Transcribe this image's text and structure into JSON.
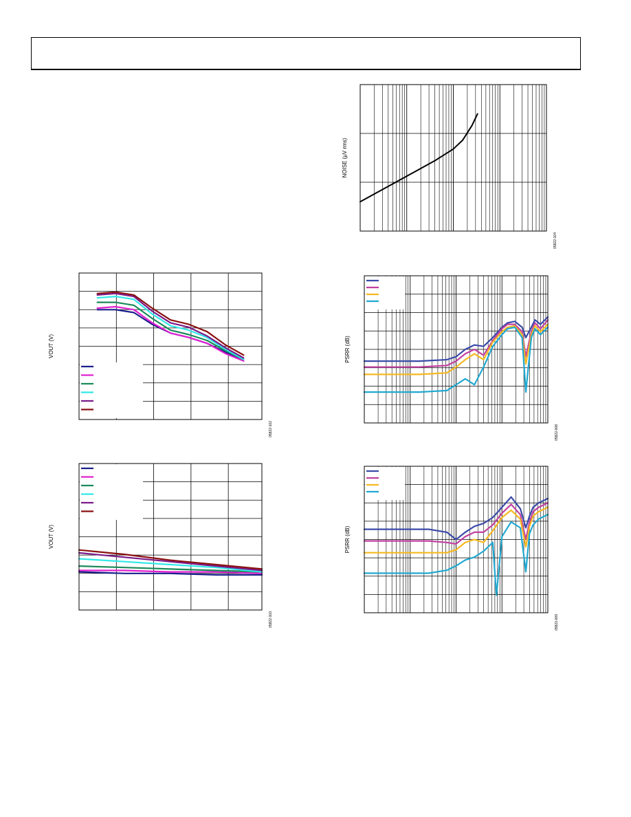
{
  "header": {
    "text": ""
  },
  "chart_data": [
    {
      "id": "noise",
      "type": "line",
      "ylabel": "NOISE (µV rms)",
      "xscale": "log",
      "figure_id": "05822-104",
      "series": [
        {
          "name": "",
          "color": "#000000",
          "x": [
            0.0,
            0.1,
            0.2,
            0.3,
            0.4,
            0.5,
            0.55,
            0.6,
            0.63
          ],
          "y": [
            0.8,
            0.73,
            0.66,
            0.59,
            0.52,
            0.44,
            0.38,
            0.28,
            0.2
          ]
        }
      ]
    },
    {
      "id": "vout-top",
      "type": "line",
      "ylabel": "VOUT (V)",
      "figure_id": "05822-102",
      "legend": {
        "placement": "bottom-left",
        "colors": [
          "#1a1f8c",
          "#e020d0",
          "#1a8a5a",
          "#30e8e8",
          "#7a1a8a",
          "#8a1010"
        ]
      },
      "series": [
        {
          "name": "",
          "color": "#1a1f8c",
          "x": [
            0.1,
            0.2,
            0.3,
            0.4,
            0.5,
            0.6,
            0.7,
            0.8,
            0.9
          ],
          "y": [
            0.25,
            0.25,
            0.27,
            0.35,
            0.41,
            0.44,
            0.48,
            0.54,
            0.6
          ]
        },
        {
          "name": "",
          "color": "#e020d0",
          "x": [
            0.1,
            0.2,
            0.3,
            0.4,
            0.5,
            0.6,
            0.7,
            0.8,
            0.9
          ],
          "y": [
            0.24,
            0.23,
            0.25,
            0.34,
            0.41,
            0.44,
            0.48,
            0.55,
            0.6
          ]
        },
        {
          "name": "",
          "color": "#1a8a5a",
          "x": [
            0.1,
            0.2,
            0.3,
            0.4,
            0.5,
            0.6,
            0.7,
            0.8,
            0.9
          ],
          "y": [
            0.2,
            0.2,
            0.22,
            0.31,
            0.39,
            0.42,
            0.46,
            0.53,
            0.59
          ]
        },
        {
          "name": "",
          "color": "#30e8e8",
          "x": [
            0.1,
            0.2,
            0.3,
            0.4,
            0.5,
            0.6,
            0.7,
            0.8,
            0.9
          ],
          "y": [
            0.17,
            0.16,
            0.18,
            0.28,
            0.36,
            0.39,
            0.44,
            0.52,
            0.59
          ]
        },
        {
          "name": "",
          "color": "#7a1a8a",
          "x": [
            0.1,
            0.2,
            0.3,
            0.4,
            0.5,
            0.6,
            0.7,
            0.8,
            0.9
          ],
          "y": [
            0.15,
            0.14,
            0.16,
            0.26,
            0.34,
            0.37,
            0.43,
            0.51,
            0.58
          ]
        },
        {
          "name": "",
          "color": "#8a1010",
          "x": [
            0.1,
            0.2,
            0.3,
            0.4,
            0.5,
            0.6,
            0.7,
            0.8,
            0.9
          ],
          "y": [
            0.14,
            0.13,
            0.15,
            0.24,
            0.32,
            0.35,
            0.4,
            0.49,
            0.56
          ]
        }
      ]
    },
    {
      "id": "vout-bottom",
      "type": "line",
      "ylabel": "VOUT (V)",
      "figure_id": "05822-103",
      "legend": {
        "placement": "top-left",
        "colors": [
          "#1a1f8c",
          "#e020d0",
          "#1a8a5a",
          "#30e8e8",
          "#7a1a8a",
          "#8a1010"
        ]
      },
      "series": [
        {
          "name": "",
          "color": "#1a1f8c",
          "x": [
            0,
            0.25,
            0.5,
            0.75,
            1
          ],
          "y": [
            0.74,
            0.75,
            0.75,
            0.76,
            0.76
          ]
        },
        {
          "name": "",
          "color": "#e020d0",
          "x": [
            0,
            0.25,
            0.5,
            0.75,
            1
          ],
          "y": [
            0.73,
            0.73,
            0.74,
            0.74,
            0.75
          ]
        },
        {
          "name": "",
          "color": "#1a8a5a",
          "x": [
            0,
            0.25,
            0.5,
            0.75,
            1
          ],
          "y": [
            0.7,
            0.71,
            0.72,
            0.73,
            0.74
          ]
        },
        {
          "name": "",
          "color": "#30e8e8",
          "x": [
            0,
            0.25,
            0.5,
            0.75,
            1
          ],
          "y": [
            0.65,
            0.67,
            0.69,
            0.71,
            0.74
          ]
        },
        {
          "name": "",
          "color": "#7a1a8a",
          "x": [
            0,
            0.25,
            0.5,
            0.75,
            1
          ],
          "y": [
            0.61,
            0.64,
            0.67,
            0.7,
            0.73
          ]
        },
        {
          "name": "",
          "color": "#8a1010",
          "x": [
            0,
            0.25,
            0.5,
            0.75,
            1
          ],
          "y": [
            0.59,
            0.62,
            0.66,
            0.69,
            0.72
          ]
        }
      ]
    },
    {
      "id": "psrr-top",
      "type": "line",
      "ylabel": "PSRR (dB)",
      "xscale": "log",
      "figure_id": "05822-008",
      "legend": {
        "placement": "top-left",
        "colors": [
          "#3a4aa8",
          "#c040a0",
          "#f5b820",
          "#20a8d0"
        ]
      },
      "series": [
        {
          "name": "",
          "color": "#3a4aa8",
          "x": [
            0,
            0.3,
            0.45,
            0.5,
            0.55,
            0.6,
            0.65,
            0.7,
            0.75,
            0.78,
            0.82,
            0.86,
            0.88,
            0.91,
            0.93,
            0.96,
            1.0
          ],
          "y": [
            0.58,
            0.58,
            0.57,
            0.55,
            0.5,
            0.47,
            0.48,
            0.42,
            0.35,
            0.32,
            0.31,
            0.35,
            0.42,
            0.35,
            0.3,
            0.33,
            0.28
          ]
        },
        {
          "name": "",
          "color": "#c040a0",
          "x": [
            0,
            0.3,
            0.45,
            0.5,
            0.55,
            0.6,
            0.65,
            0.7,
            0.75,
            0.78,
            0.82,
            0.86,
            0.88,
            0.91,
            0.93,
            0.96,
            1.0
          ],
          "y": [
            0.62,
            0.62,
            0.61,
            0.58,
            0.53,
            0.5,
            0.54,
            0.44,
            0.36,
            0.33,
            0.33,
            0.38,
            0.55,
            0.38,
            0.32,
            0.36,
            0.3
          ]
        },
        {
          "name": "",
          "color": "#f5b820",
          "x": [
            0,
            0.3,
            0.45,
            0.5,
            0.55,
            0.6,
            0.65,
            0.7,
            0.75,
            0.78,
            0.82,
            0.86,
            0.88,
            0.91,
            0.93,
            0.96,
            1.0
          ],
          "y": [
            0.67,
            0.67,
            0.66,
            0.62,
            0.57,
            0.53,
            0.57,
            0.45,
            0.38,
            0.35,
            0.34,
            0.4,
            0.6,
            0.4,
            0.34,
            0.38,
            0.33
          ]
        },
        {
          "name": "",
          "color": "#20a8d0",
          "x": [
            0,
            0.3,
            0.45,
            0.5,
            0.55,
            0.6,
            0.65,
            0.7,
            0.75,
            0.78,
            0.82,
            0.86,
            0.88,
            0.91,
            0.93,
            0.96,
            1.0
          ],
          "y": [
            0.79,
            0.79,
            0.78,
            0.74,
            0.7,
            0.74,
            0.62,
            0.48,
            0.4,
            0.36,
            0.35,
            0.42,
            0.79,
            0.42,
            0.36,
            0.4,
            0.35
          ]
        }
      ]
    },
    {
      "id": "psrr-bottom",
      "type": "line",
      "ylabel": "PSRR (dB)",
      "xscale": "log",
      "figure_id": "05822-009",
      "legend": {
        "placement": "top-left",
        "colors": [
          "#3a4aa8",
          "#c040a0",
          "#f5b820",
          "#20a8d0"
        ]
      },
      "series": [
        {
          "name": "",
          "color": "#3a4aa8",
          "x": [
            0,
            0.35,
            0.45,
            0.5,
            0.55,
            0.6,
            0.65,
            0.7,
            0.75,
            0.8,
            0.85,
            0.88,
            0.9,
            0.92,
            0.95,
            1.0
          ],
          "y": [
            0.43,
            0.43,
            0.45,
            0.5,
            0.45,
            0.41,
            0.39,
            0.35,
            0.28,
            0.21,
            0.29,
            0.42,
            0.34,
            0.28,
            0.25,
            0.22
          ]
        },
        {
          "name": "",
          "color": "#c040a0",
          "x": [
            0,
            0.35,
            0.45,
            0.5,
            0.55,
            0.6,
            0.65,
            0.7,
            0.75,
            0.8,
            0.85,
            0.88,
            0.9,
            0.92,
            0.95,
            1.0
          ],
          "y": [
            0.51,
            0.51,
            0.52,
            0.53,
            0.48,
            0.45,
            0.45,
            0.4,
            0.32,
            0.26,
            0.33,
            0.5,
            0.38,
            0.31,
            0.28,
            0.25
          ]
        },
        {
          "name": "",
          "color": "#f5b820",
          "x": [
            0,
            0.35,
            0.45,
            0.5,
            0.55,
            0.6,
            0.65,
            0.7,
            0.75,
            0.8,
            0.85,
            0.88,
            0.9,
            0.92,
            0.95,
            1.0
          ],
          "y": [
            0.59,
            0.59,
            0.59,
            0.57,
            0.52,
            0.5,
            0.52,
            0.44,
            0.35,
            0.3,
            0.36,
            0.55,
            0.41,
            0.34,
            0.31,
            0.28
          ]
        },
        {
          "name": "",
          "color": "#20a8d0",
          "x": [
            0,
            0.35,
            0.45,
            0.5,
            0.55,
            0.6,
            0.65,
            0.7,
            0.72,
            0.75,
            0.8,
            0.85,
            0.88,
            0.9,
            0.92,
            0.95,
            1.0
          ],
          "y": [
            0.73,
            0.73,
            0.71,
            0.68,
            0.64,
            0.62,
            0.58,
            0.52,
            0.88,
            0.48,
            0.38,
            0.42,
            0.72,
            0.46,
            0.4,
            0.36,
            0.33
          ]
        }
      ]
    }
  ]
}
